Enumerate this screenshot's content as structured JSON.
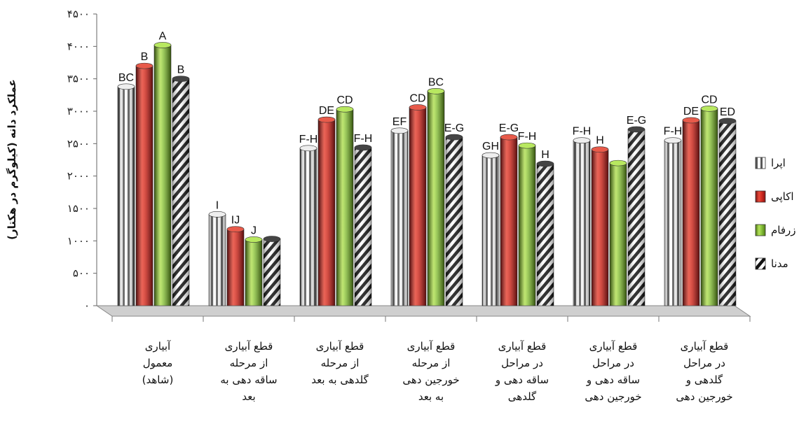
{
  "chart_data": {
    "type": "bar",
    "ylabel": "عملکرد دانه (کیلوگرم در هکتار)",
    "ylim": [
      0,
      4500
    ],
    "y_ticks": [
      {
        "value": 0,
        "label": "۰"
      },
      {
        "value": 500,
        "label": "۵۰۰"
      },
      {
        "value": 1000,
        "label": "۱۰۰۰"
      },
      {
        "value": 1500,
        "label": "۱۵۰۰"
      },
      {
        "value": 2000,
        "label": "۲۰۰۰"
      },
      {
        "value": 2500,
        "label": "۲۵۰۰"
      },
      {
        "value": 3000,
        "label": "۳۰۰۰"
      },
      {
        "value": 3500,
        "label": "۳۵۰۰"
      },
      {
        "value": 4000,
        "label": "۴۰۰۰"
      },
      {
        "value": 4500,
        "label": "۴۵۰۰"
      }
    ],
    "categories": [
      [
        "آبیاری",
        "معمول",
        "(شاهد)"
      ],
      [
        "قطع آبیاری",
        "از مرحله",
        "ساقه دهی به",
        "بعد"
      ],
      [
        "قطع آبیاری",
        "از مرحله",
        "گلدهی به بعد"
      ],
      [
        "قطع آبیاری",
        "از مرحله",
        "خورجین دهی",
        "به بعد"
      ],
      [
        "قطع آبیاری",
        "در مراحل",
        "ساقه دهی و",
        "گلدهی"
      ],
      [
        "قطع آبیاری",
        "در مراحل",
        "ساقه دهی و",
        "خورجین دهی"
      ],
      [
        "قطع آبیاری",
        "در مراحل",
        "گلدهی و",
        "خورجین دهی"
      ]
    ],
    "series": [
      {
        "name": "اپرا",
        "color": "#c8c8c8",
        "pattern": "vertical-stripes",
        "values": [
          3380,
          1410,
          2430,
          2700,
          2320,
          2550,
          2550
        ],
        "labels": [
          "BC",
          "I",
          "F-H",
          "EF",
          "GH",
          "F-H",
          "F-H"
        ]
      },
      {
        "name": "اکاپی",
        "color": "#d02b2b",
        "pattern": "solid",
        "values": [
          3700,
          1180,
          2870,
          3060,
          2600,
          2410,
          2860
        ],
        "labels": [
          "B",
          "IJ",
          "DE",
          "CD",
          "E-G",
          "H",
          "DE"
        ]
      },
      {
        "name": "زرفام",
        "color": "#8cc63f",
        "pattern": "solid",
        "values": [
          4020,
          1020,
          3030,
          3310,
          2470,
          2200,
          3040
        ],
        "labels": [
          "A",
          "J",
          "CD",
          "BC",
          "F-H",
          "",
          "CD"
        ]
      },
      {
        "name": "مدنا",
        "color": "#1a1a1a",
        "pattern": "diagonal-stripes",
        "values": [
          3500,
          1030,
          2440,
          2600,
          2190,
          2720,
          2850
        ],
        "labels": [
          "B",
          "",
          "F-H",
          "E-G",
          "H",
          "E-G",
          "ED"
        ]
      }
    ],
    "legend_position": "right",
    "grid": false
  }
}
